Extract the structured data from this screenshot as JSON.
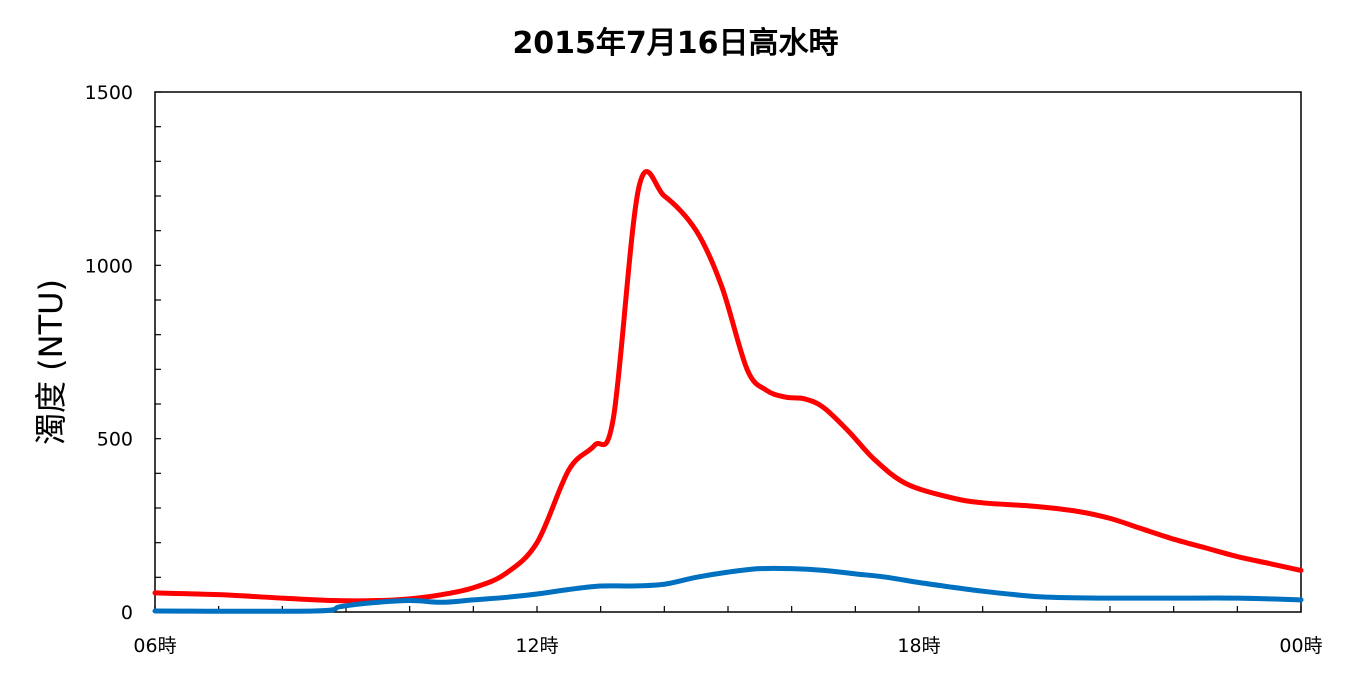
{
  "chart_data": {
    "type": "line",
    "title": "2015年7月16日高水時",
    "ylabel": "濁度 (NTU)",
    "xlabel": "",
    "x_tick_labels": [
      "06時",
      "12時",
      "18時",
      "00時"
    ],
    "x_tick_hours": [
      6,
      12,
      18,
      24
    ],
    "xlim": [
      6,
      24
    ],
    "ylim": [
      0,
      1500
    ],
    "y_ticks": [
      0,
      500,
      1000,
      1500
    ],
    "y_minor_step": 100,
    "x_minor_step": 1,
    "grid": false,
    "legend": "none",
    "series": [
      {
        "color": "#ff0000",
        "points": [
          [
            6.0,
            55
          ],
          [
            7.0,
            50
          ],
          [
            8.0,
            40
          ],
          [
            8.8,
            33
          ],
          [
            9.5,
            33
          ],
          [
            10.0,
            38
          ],
          [
            10.5,
            50
          ],
          [
            11.0,
            70
          ],
          [
            11.5,
            110
          ],
          [
            12.0,
            200
          ],
          [
            12.5,
            410
          ],
          [
            12.9,
            480
          ],
          [
            13.2,
            560
          ],
          [
            13.6,
            1225
          ],
          [
            14.0,
            1200
          ],
          [
            14.5,
            1100
          ],
          [
            14.9,
            940
          ],
          [
            15.3,
            700
          ],
          [
            15.6,
            640
          ],
          [
            15.9,
            620
          ],
          [
            16.2,
            615
          ],
          [
            16.5,
            590
          ],
          [
            16.9,
            520
          ],
          [
            17.3,
            440
          ],
          [
            17.8,
            370
          ],
          [
            18.5,
            330
          ],
          [
            19.0,
            315
          ],
          [
            19.8,
            305
          ],
          [
            20.5,
            290
          ],
          [
            21.0,
            270
          ],
          [
            21.5,
            240
          ],
          [
            22.0,
            210
          ],
          [
            22.5,
            185
          ],
          [
            23.0,
            160
          ],
          [
            23.5,
            140
          ],
          [
            24.0,
            120
          ]
        ]
      },
      {
        "color": "#0070c0",
        "points": [
          [
            6.0,
            3
          ],
          [
            8.5,
            3
          ],
          [
            8.9,
            15
          ],
          [
            9.3,
            25
          ],
          [
            10.0,
            33
          ],
          [
            10.5,
            28
          ],
          [
            11.0,
            35
          ],
          [
            11.5,
            42
          ],
          [
            12.0,
            52
          ],
          [
            12.5,
            65
          ],
          [
            13.0,
            75
          ],
          [
            13.5,
            75
          ],
          [
            14.0,
            80
          ],
          [
            14.5,
            100
          ],
          [
            15.0,
            115
          ],
          [
            15.5,
            125
          ],
          [
            16.0,
            125
          ],
          [
            16.5,
            120
          ],
          [
            17.0,
            110
          ],
          [
            17.5,
            100
          ],
          [
            18.0,
            85
          ],
          [
            18.5,
            72
          ],
          [
            19.0,
            60
          ],
          [
            19.5,
            50
          ],
          [
            20.0,
            43
          ],
          [
            21.0,
            40
          ],
          [
            22.0,
            40
          ],
          [
            23.0,
            40
          ],
          [
            24.0,
            35
          ]
        ]
      }
    ]
  }
}
